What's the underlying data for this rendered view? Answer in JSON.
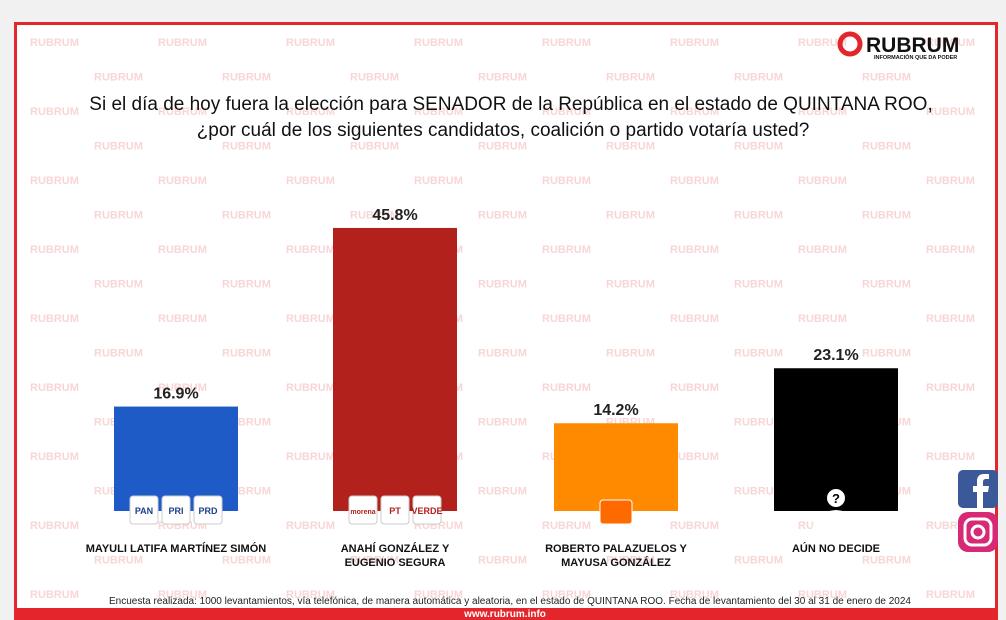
{
  "brand": {
    "name": "RUBRUM",
    "tagline": "INFORMACIÓN QUE DA PODER",
    "website": "www.rubrum.info"
  },
  "chart_data": {
    "type": "bar",
    "title": "Si el día de hoy fuera la elección para SENADOR de la República en el estado de QUINTANA ROO,",
    "subtitle": "¿por cuál de los siguientes candidatos, coalición o partido votaría usted?",
    "categories": [
      "MAYULI LATIFA MARTÍNEZ SIMÓN",
      "ANAHÍ GONZÁLEZ Y\nEUGENIO SEGURA",
      "ROBERTO PALAZUELOS Y\nMAYUSA GONZÁLEZ",
      "AÚN NO DECIDE"
    ],
    "values": [
      16.9,
      45.8,
      14.2,
      23.1
    ],
    "value_labels": [
      "16.9%",
      "45.8%",
      "14.2%",
      "23.1%"
    ],
    "colors": [
      "#1f5bc6",
      "#b3211d",
      "#ff8a00",
      "#000000"
    ],
    "party_logos": [
      [
        "PAN",
        "PRI",
        "PRD"
      ],
      [
        "morena",
        "PT",
        "VERDE"
      ],
      [],
      [
        "?"
      ]
    ],
    "ylim": [
      0,
      50
    ],
    "note": "Encuesta realizada: 1000 levantamientos, vía telefónica, de manera automática y aleatoria, en el estado de QUINTANA ROO. Fecha de levantamiento del 30 al 31 de enero de 2024"
  }
}
